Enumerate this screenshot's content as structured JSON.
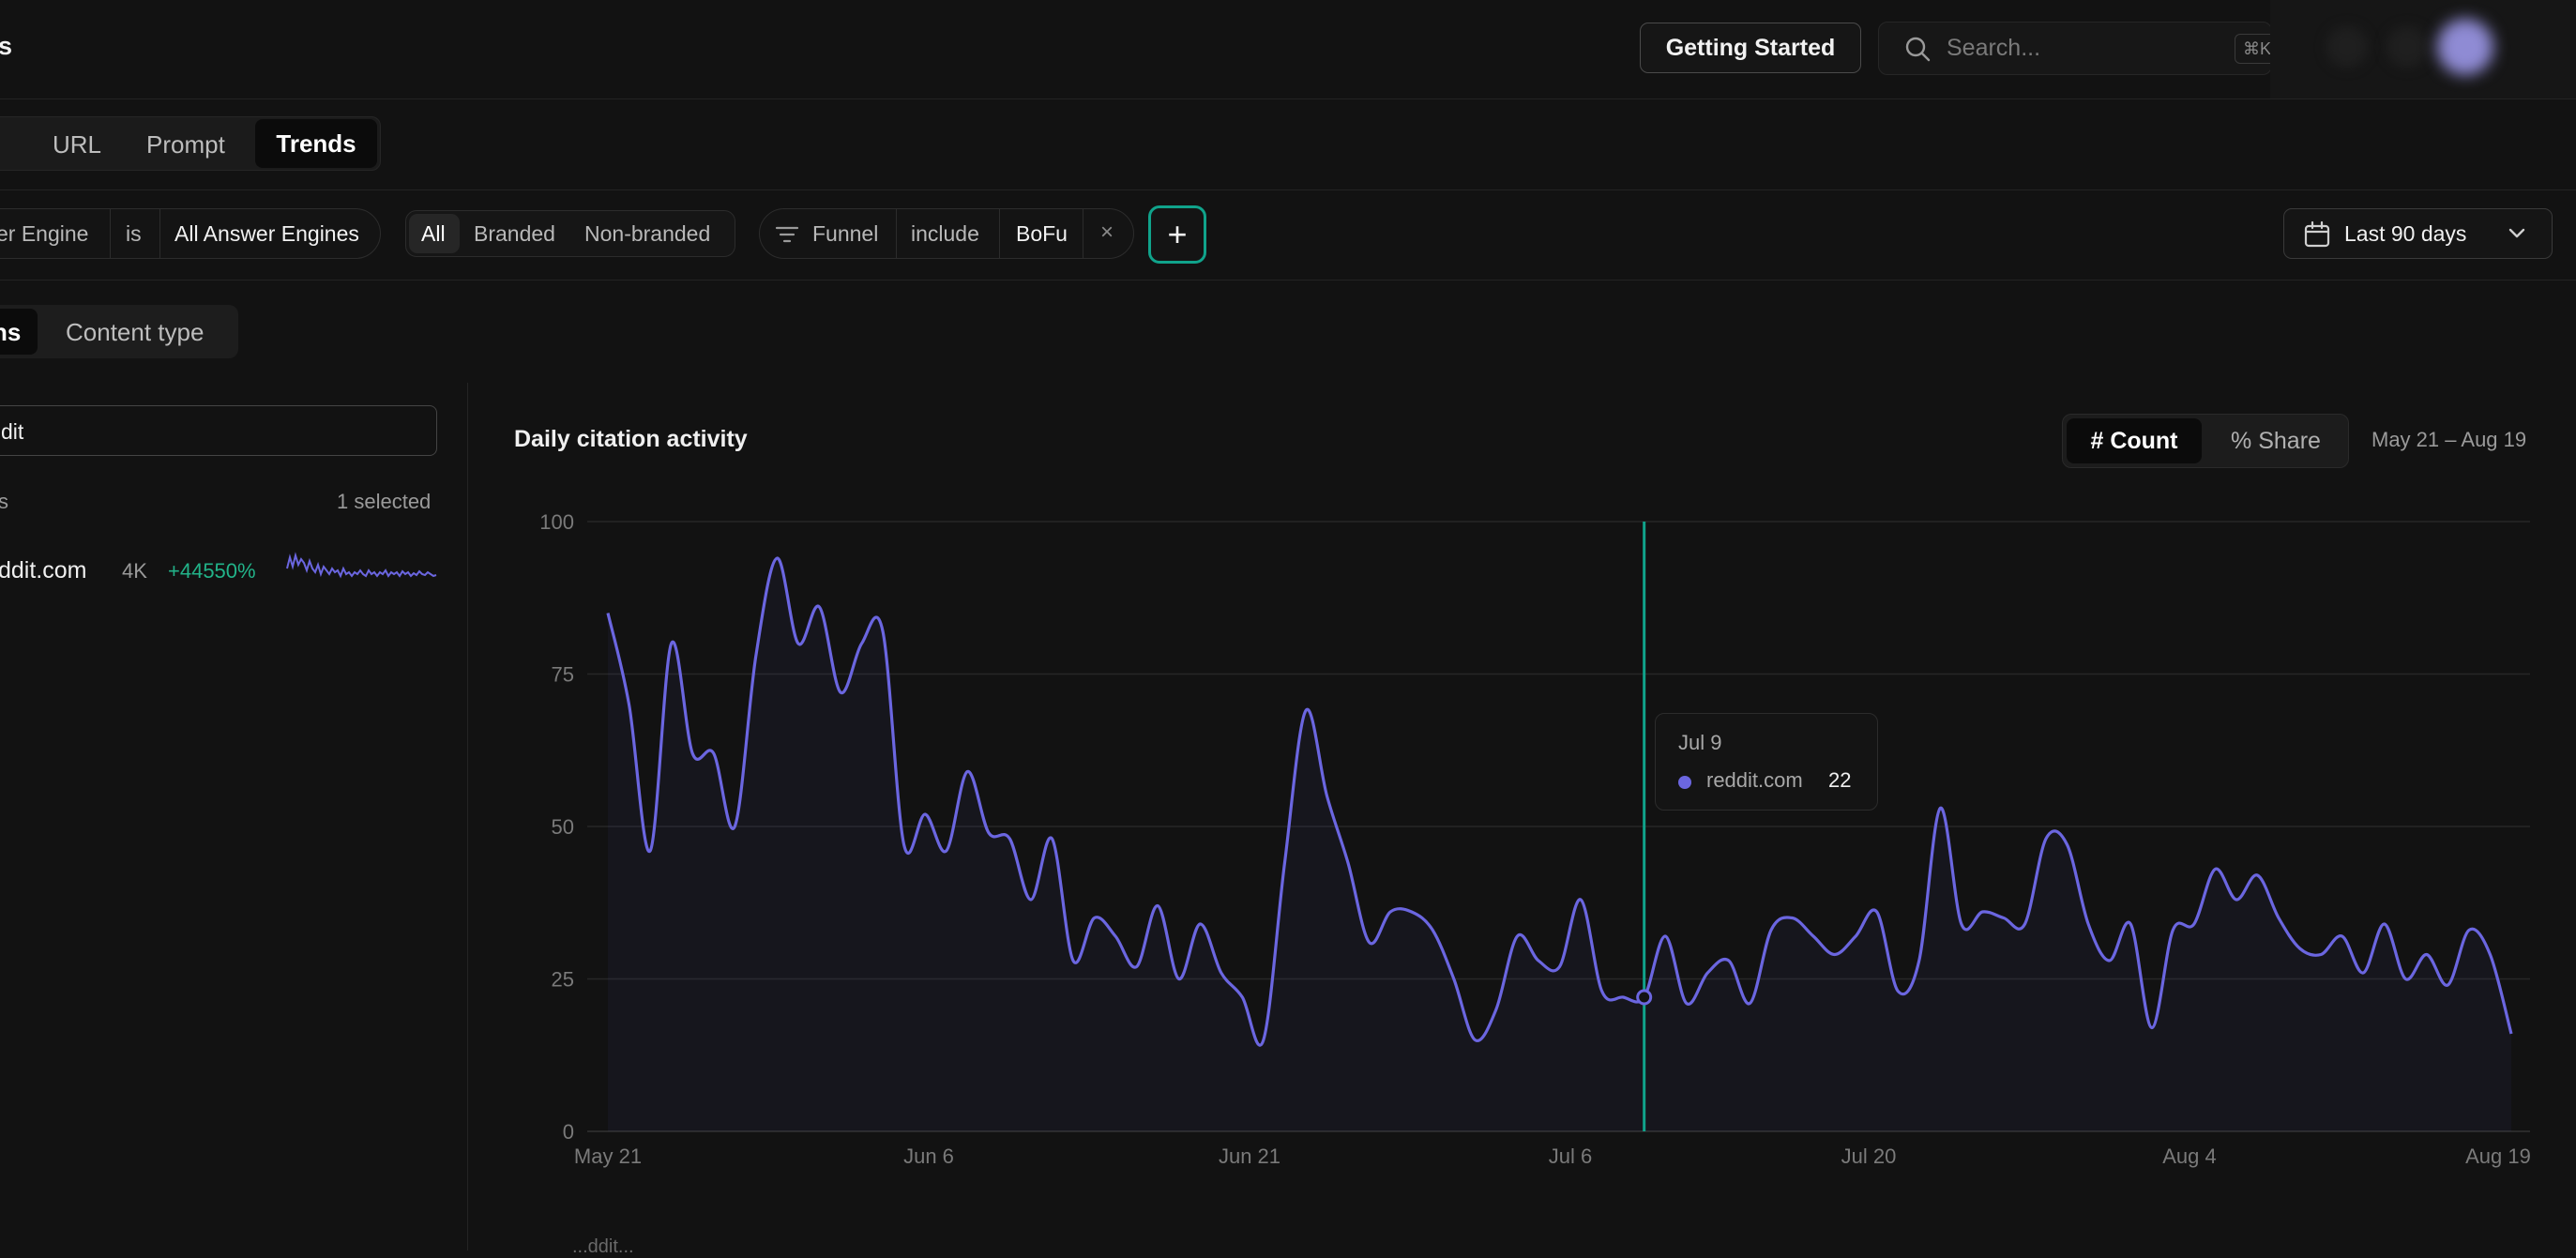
{
  "header": {
    "page_title_fragment": "s",
    "getting_started_label": "Getting Started",
    "search_placeholder": "Search...",
    "search_shortcut": "⌘K"
  },
  "view_tabs": [
    {
      "label": "n"
    },
    {
      "label": "URL"
    },
    {
      "label": "Prompt"
    },
    {
      "label": "Trends",
      "active": true
    }
  ],
  "filters": {
    "engine_field": "er Engine",
    "engine_operator": "is",
    "engine_value": "All Answer Engines",
    "branding_options": [
      "All",
      "Branded",
      "Non-branded"
    ],
    "branding_selected": "All",
    "funnel_field": "Funnel",
    "funnel_operator": "include",
    "funnel_value": "BoFu",
    "remove_symbol": "×",
    "add_symbol": "+",
    "date_range": "Last 90 days"
  },
  "group_tabs": [
    {
      "label": "ns",
      "active": true
    },
    {
      "label": "Content type"
    }
  ],
  "left_panel": {
    "filter_value": "dit",
    "list_header": "s",
    "selected_count": "1 selected",
    "rows": [
      {
        "domain": "ddit.com",
        "count": "4K",
        "change": "+44550%"
      }
    ]
  },
  "chart_card": {
    "title": "Daily citation activity",
    "mode_options": [
      "# Count",
      "% Share"
    ],
    "mode_selected": "# Count",
    "date_span": "May 21 – Aug 19",
    "footer_fragment": "...ddit..."
  },
  "tooltip": {
    "date": "Jul 9",
    "series": "reddit.com",
    "value": "22"
  },
  "colors": {
    "series": "#6b66e0",
    "accent": "#10a38b",
    "positive": "#22b389"
  },
  "chart_data": {
    "type": "line",
    "title": "Daily citation activity",
    "xlabel": "",
    "ylabel": "",
    "ylim": [
      0,
      100
    ],
    "yticks": [
      0,
      25,
      50,
      75,
      100
    ],
    "xticks": [
      "May 21",
      "Jun 6",
      "Jun 21",
      "Jul 6",
      "Jul 20",
      "Aug 4",
      "Aug 19"
    ],
    "grid": true,
    "series": [
      {
        "name": "reddit.com",
        "x": [
          "May 21",
          "May 22",
          "May 23",
          "May 24",
          "May 25",
          "May 26",
          "May 27",
          "May 28",
          "May 29",
          "May 30",
          "May 31",
          "Jun 1",
          "Jun 2",
          "Jun 3",
          "Jun 4",
          "Jun 5",
          "Jun 6",
          "Jun 7",
          "Jun 8",
          "Jun 9",
          "Jun 10",
          "Jun 11",
          "Jun 12",
          "Jun 13",
          "Jun 14",
          "Jun 15",
          "Jun 16",
          "Jun 17",
          "Jun 18",
          "Jun 19",
          "Jun 20",
          "Jun 21",
          "Jun 22",
          "Jun 23",
          "Jun 24",
          "Jun 25",
          "Jun 26",
          "Jun 27",
          "Jun 28",
          "Jun 29",
          "Jun 30",
          "Jul 1",
          "Jul 2",
          "Jul 3",
          "Jul 4",
          "Jul 5",
          "Jul 6",
          "Jul 7",
          "Jul 8",
          "Jul 9",
          "Jul 10",
          "Jul 11",
          "Jul 12",
          "Jul 13",
          "Jul 14",
          "Jul 15",
          "Jul 16",
          "Jul 17",
          "Jul 18",
          "Jul 19",
          "Jul 20",
          "Jul 21",
          "Jul 22",
          "Jul 23",
          "Jul 24",
          "Jul 25",
          "Jul 26",
          "Jul 27",
          "Jul 28",
          "Jul 29",
          "Jul 30",
          "Jul 31",
          "Aug 1",
          "Aug 2",
          "Aug 3",
          "Aug 4",
          "Aug 5",
          "Aug 6",
          "Aug 7",
          "Aug 8",
          "Aug 9",
          "Aug 10",
          "Aug 11",
          "Aug 12",
          "Aug 13",
          "Aug 14",
          "Aug 15",
          "Aug 16",
          "Aug 17",
          "Aug 18",
          "Aug 19"
        ],
        "values": [
          85,
          70,
          46,
          80,
          62,
          62,
          50,
          78,
          94,
          80,
          86,
          72,
          80,
          82,
          47,
          52,
          46,
          59,
          49,
          48,
          38,
          48,
          28,
          35,
          32,
          27,
          37,
          25,
          34,
          26,
          22,
          15,
          44,
          69,
          55,
          44,
          31,
          36,
          36,
          33,
          25,
          15,
          20,
          32,
          28,
          27,
          38,
          23,
          22,
          22,
          32,
          21,
          26,
          28,
          21,
          33,
          35,
          32,
          29,
          32,
          36,
          23,
          28,
          53,
          34,
          36,
          35,
          34,
          48,
          47,
          34,
          28,
          34,
          17,
          33,
          34,
          43,
          38,
          42,
          35,
          30,
          29,
          32,
          26,
          34,
          25,
          29,
          24,
          33,
          29,
          16
        ]
      }
    ]
  }
}
